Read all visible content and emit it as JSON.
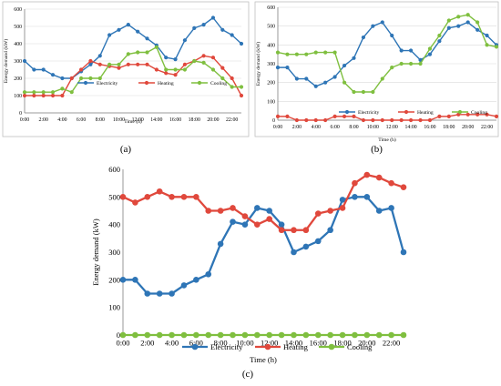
{
  "chart_data": [
    {
      "panel_label": "(a)",
      "type": "line",
      "xlabel": "Time (h)",
      "ylabel": "Energy demand (kW)",
      "ylim": [
        0,
        600
      ],
      "yticks": [
        0,
        100,
        200,
        300,
        400,
        500,
        600
      ],
      "x_tick_labels": [
        "0:00",
        "2:00",
        "4:00",
        "6:00",
        "8:00",
        "10:00",
        "12:00",
        "14:00",
        "16:00",
        "18:00",
        "20:00",
        "22:00"
      ],
      "grid": true,
      "legend_position": "middle",
      "x": [
        0,
        1,
        2,
        3,
        4,
        5,
        6,
        7,
        8,
        9,
        10,
        11,
        12,
        13,
        14,
        15,
        16,
        17,
        18,
        19,
        20,
        21,
        22,
        23
      ],
      "series": [
        {
          "name": "Electricity",
          "color": "#2e75b6",
          "values": [
            300,
            250,
            250,
            220,
            200,
            200,
            240,
            280,
            330,
            450,
            480,
            510,
            470,
            430,
            390,
            320,
            310,
            420,
            490,
            510,
            550,
            480,
            450,
            400
          ]
        },
        {
          "name": "Heating",
          "color": "#e0483c",
          "values": [
            100,
            100,
            100,
            100,
            100,
            200,
            250,
            300,
            280,
            270,
            260,
            280,
            280,
            280,
            250,
            230,
            220,
            280,
            300,
            330,
            320,
            260,
            200,
            100
          ]
        },
        {
          "name": "Cooling",
          "color": "#7fbf3f",
          "values": [
            120,
            120,
            120,
            120,
            140,
            120,
            200,
            200,
            200,
            280,
            280,
            340,
            350,
            350,
            380,
            250,
            250,
            250,
            300,
            290,
            250,
            200,
            150,
            150
          ]
        }
      ]
    },
    {
      "panel_label": "(b)",
      "type": "line",
      "xlabel": "Time (h)",
      "ylabel": "Energy demand (kW)",
      "ylim": [
        0,
        600
      ],
      "yticks": [
        0,
        100,
        200,
        300,
        400,
        500,
        600
      ],
      "x_tick_labels": [
        "0:00",
        "2:00",
        "4:00",
        "6:00",
        "8:00",
        "10:00",
        "12:00",
        "14:00",
        "16:00",
        "18:00",
        "20:00",
        "22:00"
      ],
      "grid": true,
      "legend_position": "middle",
      "x": [
        0,
        1,
        2,
        3,
        4,
        5,
        6,
        7,
        8,
        9,
        10,
        11,
        12,
        13,
        14,
        15,
        16,
        17,
        18,
        19,
        20,
        21,
        22,
        23
      ],
      "series": [
        {
          "name": "Electricity",
          "color": "#2e75b6",
          "values": [
            280,
            280,
            220,
            220,
            180,
            200,
            230,
            290,
            330,
            440,
            500,
            520,
            450,
            370,
            370,
            320,
            350,
            420,
            490,
            500,
            520,
            480,
            450,
            400
          ]
        },
        {
          "name": "Heating",
          "color": "#e0483c",
          "values": [
            20,
            20,
            0,
            0,
            0,
            0,
            20,
            20,
            20,
            0,
            0,
            0,
            0,
            0,
            0,
            0,
            0,
            20,
            20,
            30,
            30,
            30,
            30,
            20
          ]
        },
        {
          "name": "Cooling",
          "color": "#7fbf3f",
          "values": [
            360,
            350,
            350,
            350,
            360,
            360,
            360,
            200,
            150,
            150,
            150,
            220,
            280,
            300,
            300,
            300,
            380,
            450,
            530,
            550,
            560,
            520,
            400,
            390
          ]
        }
      ]
    },
    {
      "panel_label": "(c)",
      "type": "line",
      "xlabel": "Time (h)",
      "ylabel": "Energy demand (kW)",
      "ylim": [
        0,
        600
      ],
      "yticks": [
        0,
        100,
        200,
        300,
        400,
        500,
        600
      ],
      "x_tick_labels": [
        "0:00",
        "2:00",
        "4:00",
        "6:00",
        "8:00",
        "10:00",
        "12:00",
        "14:00",
        "16:00",
        "18:00",
        "20:00",
        "22:00"
      ],
      "grid": false,
      "legend_position": "bottom",
      "x": [
        0,
        1,
        2,
        3,
        4,
        5,
        6,
        7,
        8,
        9,
        10,
        11,
        12,
        13,
        14,
        15,
        16,
        17,
        18,
        19,
        20,
        21,
        22,
        23
      ],
      "series": [
        {
          "name": "Electricity",
          "color": "#2e75b6",
          "values": [
            200,
            200,
            150,
            150,
            150,
            180,
            200,
            220,
            330,
            410,
            400,
            460,
            450,
            400,
            300,
            320,
            340,
            380,
            490,
            500,
            500,
            450,
            460,
            300
          ]
        },
        {
          "name": "Heating",
          "color": "#e0483c",
          "values": [
            500,
            480,
            500,
            520,
            500,
            500,
            500,
            450,
            450,
            460,
            430,
            400,
            420,
            380,
            380,
            380,
            440,
            450,
            460,
            550,
            580,
            570,
            550,
            535
          ]
        },
        {
          "name": "Cooling",
          "color": "#7fbf3f",
          "values": [
            0,
            0,
            0,
            0,
            0,
            0,
            0,
            0,
            0,
            0,
            0,
            0,
            0,
            0,
            0,
            0,
            0,
            0,
            0,
            0,
            0,
            0,
            0,
            0
          ]
        }
      ]
    }
  ]
}
